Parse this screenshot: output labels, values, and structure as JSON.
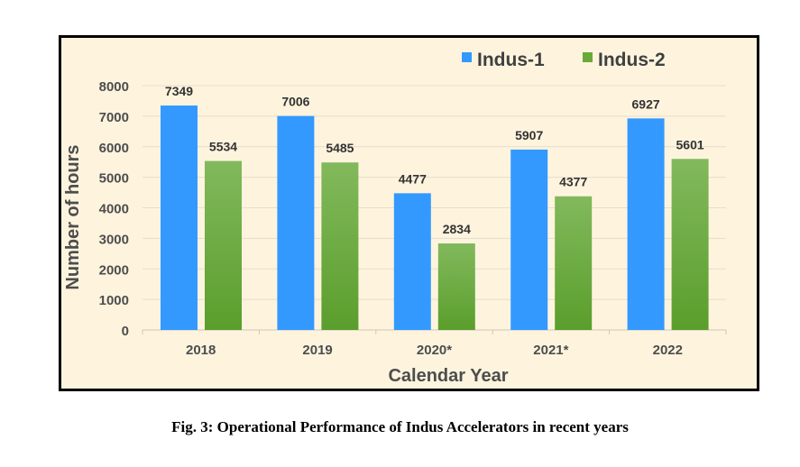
{
  "chart_data": {
    "type": "bar",
    "categories": [
      "2018",
      "2019",
      "2020*",
      "2021*",
      "2022"
    ],
    "series": [
      {
        "name": "Indus-1",
        "values": [
          7349,
          7006,
          4477,
          5907,
          6927
        ],
        "color": "#3399ff"
      },
      {
        "name": "Indus-2",
        "values": [
          5534,
          5485,
          2834,
          4377,
          5601
        ],
        "color": "#6aaa3a"
      }
    ],
    "title": "",
    "xlabel": "Calendar Year",
    "ylabel": "Number of hours",
    "ylim": [
      0,
      8000
    ],
    "yticks": [
      "0",
      "1000",
      "2000",
      "3000",
      "4000",
      "5000",
      "6000",
      "7000",
      "8000"
    ],
    "grid": true,
    "legend": "top-right",
    "data_labels": true,
    "background": "#fef4de"
  },
  "caption": "Fig. 3: Operational Performance of Indus Accelerators in recent years"
}
